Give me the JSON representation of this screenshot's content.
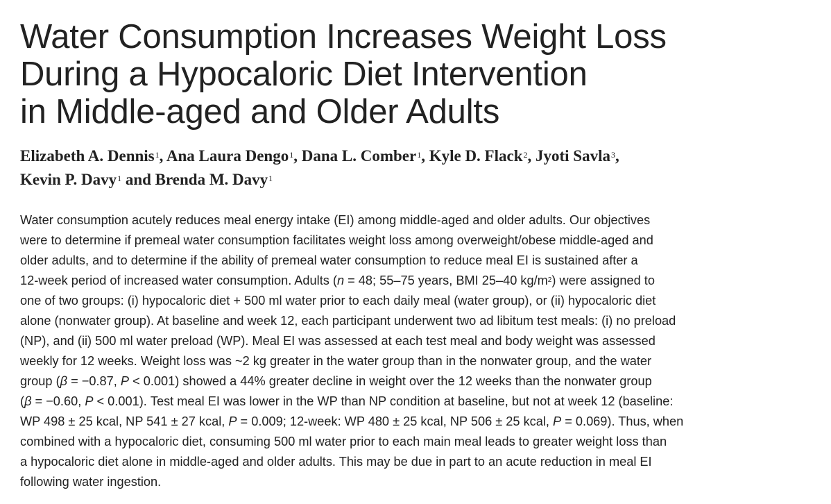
{
  "title_lines": [
    "Water Consumption Increases Weight Loss",
    "During a Hypocaloric Diet Intervention",
    "in Middle-aged and Older Adults"
  ],
  "authors": [
    {
      "name": "Elizabeth A. Dennis",
      "aff": "1",
      "sep": ", "
    },
    {
      "name": "Ana Laura Dengo",
      "aff": "1",
      "sep": ", "
    },
    {
      "name": "Dana L. Comber",
      "aff": "1",
      "sep": ", "
    },
    {
      "name": "Kyle D. Flack",
      "aff": "2",
      "sep": ", "
    },
    {
      "name": "Jyoti Savla",
      "aff": "3",
      "sep": ","
    },
    {
      "name": "Kevin P. Davy",
      "aff": "1",
      "sep": " and "
    },
    {
      "name": "Brenda M. Davy",
      "aff": "1",
      "sep": ""
    }
  ],
  "abstract_lines": [
    "Water consumption acutely reduces meal energy intake (EI) among middle-aged and older adults. Our objectives",
    "were to determine if premeal water consumption facilitates weight loss among overweight/obese middle-aged and",
    "older adults, and to determine if the ability of premeal water consumption to reduce meal EI is sustained after a",
    "12-week period of increased water consumption. Adults (*n* = 48; 55–75 years, BMI 25–40 kg/m^2^) were assigned to",
    "one of two groups: (i) hypocaloric diet + 500 ml water prior to each daily meal (water group), or (ii) hypocaloric diet",
    "alone (nonwater group). At baseline and week 12, each participant underwent two ad libitum test meals: (i) no preload",
    "(NP), and (ii) 500 ml water preload (WP). Meal EI was assessed at each test meal and body weight was assessed",
    "weekly for 12 weeks. Weight loss was ~2 kg greater in the water group than in the nonwater group, and the water",
    "group (*β* = −0.87, *P* < 0.001) showed a 44% greater decline in weight over the 12 weeks than the nonwater group",
    "(*β* = −0.60, *P* < 0.001). Test meal EI was lower in the WP than NP condition at baseline, but not at week 12 (baseline:",
    "WP 498 ± 25 kcal, NP 541 ± 27 kcal, *P* = 0.009; 12-week: WP 480 ± 25 kcal, NP 506 ± 25 kcal, *P* = 0.069). Thus, when",
    "combined with a hypocaloric diet, consuming 500 ml water prior to each main meal leads to greater weight loss than",
    "a hypocaloric diet alone in middle-aged and older adults. This may be due in part to an acute reduction in meal EI",
    "following water ingestion."
  ]
}
